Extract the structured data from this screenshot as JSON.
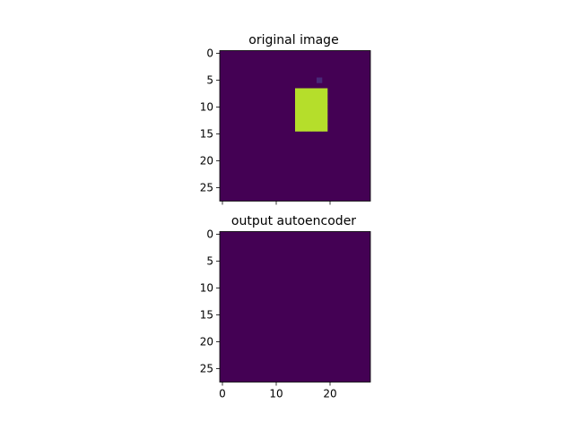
{
  "chart_data": [
    {
      "type": "heatmap",
      "title": "original image",
      "colormap": "viridis",
      "xlim": [
        -0.5,
        27.5
      ],
      "ylim": [
        27.5,
        -0.5
      ],
      "x_ticks": [
        0,
        10,
        20
      ],
      "y_ticks": [
        0,
        5,
        10,
        15,
        20,
        25
      ],
      "x_tick_labels": [
        "",
        "",
        ""
      ],
      "y_tick_labels": [
        "0",
        "5",
        "10",
        "15",
        "20",
        "25"
      ],
      "value_range": [
        0,
        1
      ],
      "rows": [
        "0000000000000000000000000000",
        "0000000000000000000000000000",
        "0000000000000000000000000000",
        "0000000000000000000000000000",
        "0000000000000000000000000000",
        "0000000000000000001000000000",
        "0000000000000000000000000000",
        "0000000000000088888800000000",
        "0000000000000088888800000000",
        "0000000000000088888800000000",
        "0000000000000088888800000000",
        "0000000000000088888800000000",
        "0000000000000088888800000000",
        "0000000000000088888800000000",
        "0000000000000088888800000000",
        "0000000000000000000000000000",
        "0000000000000000000000000000",
        "0000000000000000000000000000",
        "0000000000000000000000000000",
        "0000000000000000000000000000",
        "0000000000000000000000000000",
        "0000000000000000000000000000",
        "0000000000000000000000000000",
        "0000000000000000000000000000",
        "0000000000000000000000000000",
        "0000000000000000000000000000",
        "0000000000000000000000000000",
        "0000000000000000000000000000"
      ]
    },
    {
      "type": "heatmap",
      "title": "output autoencoder",
      "colormap": "viridis",
      "xlim": [
        -0.5,
        27.5
      ],
      "ylim": [
        27.5,
        -0.5
      ],
      "x_ticks": [
        0,
        10,
        20
      ],
      "y_ticks": [
        0,
        5,
        10,
        15,
        20,
        25
      ],
      "x_tick_labels": [
        "0",
        "10",
        "20"
      ],
      "y_tick_labels": [
        "0",
        "5",
        "10",
        "15",
        "20",
        "25"
      ],
      "value_range": [
        0,
        1
      ],
      "rows": [
        "0000000000000000000000000000",
        "0000000000000000000000000000",
        "0000000000000000000000000000",
        "0000000000000000000000000000",
        "0000000000000000000000000000",
        "0000000000000000000000000000",
        "0000000000000000000000000000",
        "0000000000000000000000000000",
        "0000000000000000000000000000",
        "0000000000000000000000000000",
        "0000000000000000000000000000",
        "0000000000000000000000000000",
        "0000000000000000000000000000",
        "0000000000000000000000000000",
        "0000000000000000000000000000",
        "0000000000000000000000000000",
        "0000000000000000000000000000",
        "0000000000000000000000000000",
        "0000000000000000000000000000",
        "0000000000000000000000000000",
        "0000000000000000000000000000",
        "0000000000000000000000000000",
        "0000000000000000000000000000",
        "0000000000000000000000000000",
        "0000000000000000000000000000",
        "0000000000000000000000000000",
        "0000000000000000000000000000",
        "0000000000000000000000000000"
      ]
    }
  ]
}
